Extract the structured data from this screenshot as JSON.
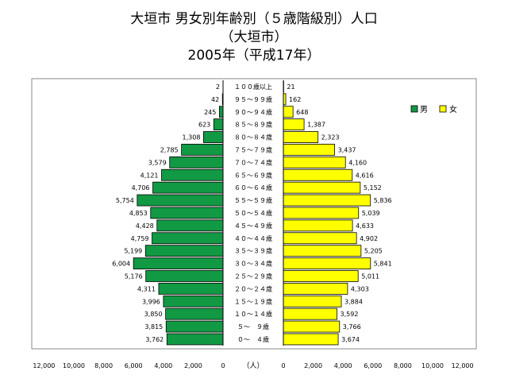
{
  "chart_data": {
    "type": "bar",
    "title_lines": [
      "大垣市 男女別年齢別（５歳階級別）人口",
      "（大垣市）",
      "2005年（平成17年）"
    ],
    "categories": [
      "１００歳以上",
      "９５～９９歳",
      "９０～９４歳",
      "８５～８９歳",
      "８０～８４歳",
      "７５～７９歳",
      "７０～７４歳",
      "６５～６９歳",
      "６０～６４歳",
      "５５～５９歳",
      "５０～５４歳",
      "４５～４９歳",
      "４０～４４歳",
      "３５～３９歳",
      "３０～３４歳",
      "２５～２９歳",
      "２０～２４歳",
      "１５～１９歳",
      "１０～１４歳",
      "５～　９歳",
      "０～　４歳"
    ],
    "series": [
      {
        "name": "男",
        "color": "#119944",
        "values": [
          2,
          42,
          245,
          623,
          1308,
          2785,
          3579,
          4121,
          4706,
          5754,
          4853,
          4428,
          4759,
          5199,
          6004,
          5176,
          4311,
          3996,
          3850,
          3815,
          3762
        ]
      },
      {
        "name": "女",
        "color": "#ffff00",
        "values": [
          21,
          162,
          648,
          1387,
          2323,
          3437,
          4160,
          4616,
          5152,
          5836,
          5039,
          4633,
          4902,
          5205,
          5841,
          5011,
          4303,
          3884,
          3592,
          3766,
          3674
        ]
      }
    ],
    "value_labels": {
      "男": [
        "2",
        "42",
        "245",
        "623",
        "1,308",
        "2,785",
        "3,579",
        "4,121",
        "4,706",
        "5,754",
        "4,853",
        "4,428",
        "4,759",
        "5,199",
        "6,004",
        "5,176",
        "4,311",
        "3,996",
        "3,850",
        "3,815",
        "3,762"
      ],
      "女": [
        "21",
        "162",
        "648",
        "1,387",
        "2,323",
        "3,437",
        "4,160",
        "4,616",
        "5,152",
        "5,836",
        "5,039",
        "4,633",
        "4,902",
        "5,205",
        "5,841",
        "5,011",
        "4,303",
        "3,884",
        "3,592",
        "3,766",
        "3,674"
      ]
    },
    "xlim": [
      0,
      12000
    ],
    "left_ticks": [
      "12,000",
      "10,000",
      "8,000",
      "6,000",
      "4,000",
      "2,000",
      "0"
    ],
    "right_ticks": [
      "0",
      "2,000",
      "4,000",
      "6,000",
      "8,000",
      "10,000",
      "12,000"
    ],
    "axis_unit": "（人）",
    "legend_position": "top-right",
    "grid": false
  }
}
